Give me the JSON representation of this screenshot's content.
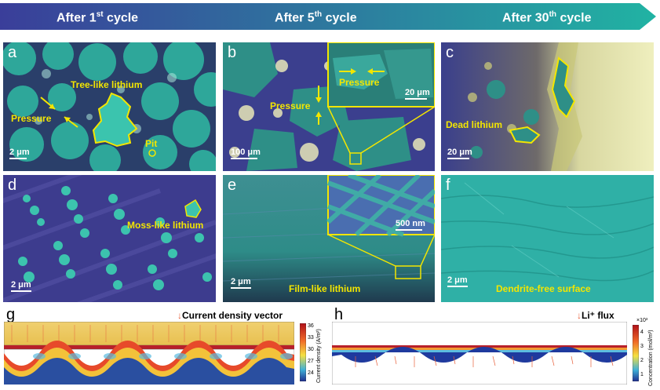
{
  "banner": {
    "stage1": {
      "pre": "After 1",
      "sup": "st",
      "post": " cycle"
    },
    "stage2": {
      "pre": "After 5",
      "sup": "th",
      "post": " cycle"
    },
    "stage3": {
      "pre": "After 30",
      "sup": "th",
      "post": " cycle"
    }
  },
  "panels": {
    "a": {
      "label": "a",
      "ann_tree": "Tree-like lithium",
      "ann_pressure": "Pressure",
      "ann_pit": "Pit",
      "scale": "2 μm"
    },
    "b": {
      "label": "b",
      "ann_pressure": "Pressure",
      "inset_pressure": "Pressure",
      "inset_scale": "20 μm",
      "scale": "100 μm"
    },
    "c": {
      "label": "c",
      "ann_dead": "Dead lithium",
      "scale": "20 μm"
    },
    "d": {
      "label": "d",
      "ann_moss": "Moss-like lithium",
      "scale": "2 μm"
    },
    "e": {
      "label": "e",
      "ann_film": "Film-like lithium",
      "inset_scale": "500 nm",
      "scale": "2 μm"
    },
    "f": {
      "label": "f",
      "ann_dendrite": "Dendrite-free surface",
      "scale": "2 μm"
    },
    "g": {
      "label": "g",
      "legend_arrow": "↓",
      "legend": "Current density vector",
      "colorbar_title": "Current density (A/m²)",
      "ticks": [
        "36",
        "33",
        "30",
        "27",
        "24"
      ]
    },
    "h": {
      "label": "h",
      "legend_arrow": "↓",
      "legend": "Li⁺ flux",
      "colorbar_title": "Concentration (mol/m³)",
      "multiplier": "×10³",
      "ticks": [
        "4",
        "3",
        "2",
        "1"
      ]
    }
  },
  "colors": {
    "banner_start": "#3a3e9a",
    "banner_end": "#21b3a3",
    "annotation": "#f3e600",
    "lithium": "#2fb3a0"
  }
}
